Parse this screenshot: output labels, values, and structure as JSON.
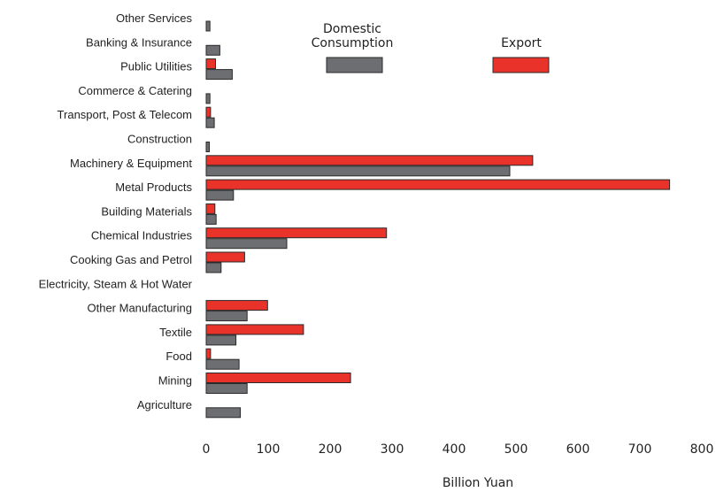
{
  "chart_data": {
    "type": "bar",
    "orientation": "horizontal",
    "categories": [
      "Other Services",
      "Banking & Insurance",
      "Public Utilities",
      "Commerce & Catering",
      "Transport, Post & Telecom",
      "Construction",
      "Machinery & Equipment",
      "Metal Products",
      "Building Materials",
      "Chemical Industries",
      "Cooking Gas and Petrol",
      "Electricity, Steam & Hot Water",
      "Other Manufacturing",
      "Textile",
      "Food",
      "Mining",
      "Agriculture"
    ],
    "series": [
      {
        "name": "Export",
        "color": "#e8322a",
        "values": [
          0,
          0,
          15,
          0,
          7,
          0,
          527,
          748,
          14,
          291,
          62,
          0,
          99,
          157,
          7,
          233,
          0
        ]
      },
      {
        "name": "Domestic Consumption",
        "color": "#6d6e71",
        "values": [
          6,
          22,
          42,
          6,
          13,
          5,
          490,
          44,
          16,
          130,
          24,
          0,
          66,
          48,
          53,
          66,
          55
        ]
      }
    ],
    "x_ticks": [
      "0",
      "100",
      "200",
      "300",
      "400",
      "500",
      "600",
      "700",
      "800"
    ],
    "xlim": [
      0,
      800
    ],
    "xlabel": "Billion Yuan",
    "legend": [
      {
        "label_lines": [
          "Domestic",
          "Consumption"
        ],
        "series": "Domestic Consumption"
      },
      {
        "label_lines": [
          "Export"
        ],
        "series": "Export"
      }
    ],
    "legend_position": "top-center",
    "grid": false
  }
}
